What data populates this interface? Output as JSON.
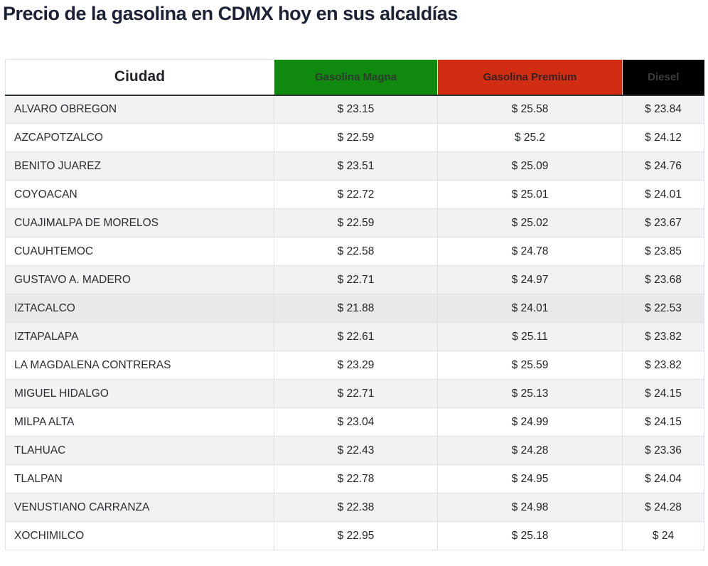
{
  "page": {
    "title": "Precio de la gasolina en CDMX hoy en sus alcaldías"
  },
  "table": {
    "columns": [
      {
        "label": "Ciudad",
        "bg": "#ffffff",
        "text_color": "#212529"
      },
      {
        "label": "Gasolina Magna",
        "bg": "#0f8a0f",
        "text_color": "#2d3a2d"
      },
      {
        "label": "Gasolina Premium",
        "bg": "#d02d12",
        "text_color": "#38201c"
      },
      {
        "label": "Diesel",
        "bg": "#000000",
        "text_color": "#3d3d3d"
      }
    ],
    "highlighted_row_index": 7,
    "rows": [
      {
        "city": "ALVARO OBREGON",
        "magna": "$ 23.15",
        "premium": "$ 25.58",
        "diesel": "$ 23.84"
      },
      {
        "city": "AZCAPOTZALCO",
        "magna": "$ 22.59",
        "premium": "$ 25.2",
        "diesel": "$ 24.12"
      },
      {
        "city": "BENITO JUAREZ",
        "magna": "$ 23.51",
        "premium": "$ 25.09",
        "diesel": "$ 24.76"
      },
      {
        "city": "COYOACAN",
        "magna": "$ 22.72",
        "premium": "$ 25.01",
        "diesel": "$ 24.01"
      },
      {
        "city": "CUAJIMALPA DE MORELOS",
        "magna": "$ 22.59",
        "premium": "$ 25.02",
        "diesel": "$ 23.67"
      },
      {
        "city": "CUAUHTEMOC",
        "magna": "$ 22.58",
        "premium": "$ 24.78",
        "diesel": "$ 23.85"
      },
      {
        "city": "GUSTAVO A. MADERO",
        "magna": "$ 22.71",
        "premium": "$ 24.97",
        "diesel": "$ 23.68"
      },
      {
        "city": "IZTACALCO",
        "magna": "$ 21.88",
        "premium": "$ 24.01",
        "diesel": "$ 22.53"
      },
      {
        "city": "IZTAPALAPA",
        "magna": "$ 22.61",
        "premium": "$ 25.11",
        "diesel": "$ 23.82"
      },
      {
        "city": "LA MAGDALENA CONTRERAS",
        "magna": "$ 23.29",
        "premium": "$ 25.59",
        "diesel": "$ 23.82"
      },
      {
        "city": "MIGUEL HIDALGO",
        "magna": "$ 22.71",
        "premium": "$ 25.13",
        "diesel": "$ 24.15"
      },
      {
        "city": "MILPA ALTA",
        "magna": "$ 23.04",
        "premium": "$ 24.99",
        "diesel": "$ 24.15"
      },
      {
        "city": "TLAHUAC",
        "magna": "$ 22.43",
        "premium": "$ 24.28",
        "diesel": "$ 23.36"
      },
      {
        "city": "TLALPAN",
        "magna": "$ 22.78",
        "premium": "$ 24.95",
        "diesel": "$ 24.04"
      },
      {
        "city": "VENUSTIANO CARRANZA",
        "magna": "$ 22.38",
        "premium": "$ 24.98",
        "diesel": "$ 24.28"
      },
      {
        "city": "XOCHIMILCO",
        "magna": "$ 22.95",
        "premium": "$ 25.18",
        "diesel": "$ 24"
      }
    ]
  },
  "chart_data": {
    "type": "table",
    "title": "Precio de la gasolina en CDMX hoy en sus alcaldías",
    "columns": [
      "Ciudad",
      "Gasolina Magna",
      "Gasolina Premium",
      "Diesel"
    ],
    "rows": [
      [
        "ALVARO OBREGON",
        23.15,
        25.58,
        23.84
      ],
      [
        "AZCAPOTZALCO",
        22.59,
        25.2,
        24.12
      ],
      [
        "BENITO JUAREZ",
        23.51,
        25.09,
        24.76
      ],
      [
        "COYOACAN",
        22.72,
        25.01,
        24.01
      ],
      [
        "CUAJIMALPA DE MORELOS",
        22.59,
        25.02,
        23.67
      ],
      [
        "CUAUHTEMOC",
        22.58,
        24.78,
        23.85
      ],
      [
        "GUSTAVO A. MADERO",
        22.71,
        24.97,
        23.68
      ],
      [
        "IZTACALCO",
        21.88,
        24.01,
        22.53
      ],
      [
        "IZTAPALAPA",
        22.61,
        25.11,
        23.82
      ],
      [
        "LA MAGDALENA CONTRERAS",
        23.29,
        25.59,
        23.82
      ],
      [
        "MIGUEL HIDALGO",
        22.71,
        25.13,
        24.15
      ],
      [
        "MILPA ALTA",
        23.04,
        24.99,
        24.15
      ],
      [
        "TLAHUAC",
        22.43,
        24.28,
        23.36
      ],
      [
        "TLALPAN",
        22.78,
        24.95,
        24.04
      ],
      [
        "VENUSTIANO CARRANZA",
        22.38,
        24.98,
        24.28
      ],
      [
        "XOCHIMILCO",
        22.95,
        25.18,
        24
      ]
    ],
    "currency": "MXN ($)",
    "layout_hints": {
      "striped_rows": true,
      "header_colors": {
        "magna": "#0f8a0f",
        "premium": "#d02d12",
        "diesel": "#000000"
      }
    }
  }
}
